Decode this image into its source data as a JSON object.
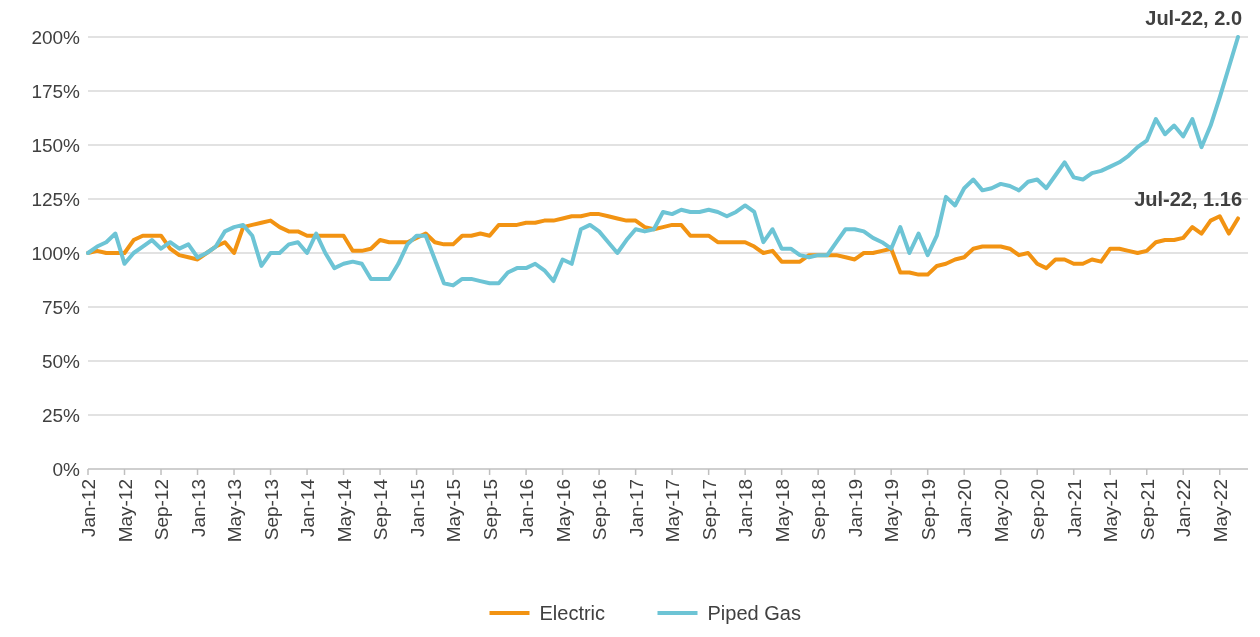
{
  "chart_data": {
    "type": "line",
    "categories": [
      "Jan-12",
      null,
      null,
      null,
      "May-12",
      null,
      null,
      null,
      "Sep-12",
      null,
      null,
      null,
      "Jan-13",
      null,
      null,
      null,
      "May-13",
      null,
      null,
      null,
      "Sep-13",
      null,
      null,
      null,
      "Jan-14",
      null,
      null,
      null,
      "May-14",
      null,
      null,
      null,
      "Sep-14",
      null,
      null,
      null,
      "Jan-15",
      null,
      null,
      null,
      "May-15",
      null,
      null,
      null,
      "Sep-15",
      null,
      null,
      null,
      "Jan-16",
      null,
      null,
      null,
      "May-16",
      null,
      null,
      null,
      "Sep-16",
      null,
      null,
      null,
      "Jan-17",
      null,
      null,
      null,
      "May-17",
      null,
      null,
      null,
      "Sep-17",
      null,
      null,
      null,
      "Jan-18",
      null,
      null,
      null,
      "May-18",
      null,
      null,
      null,
      "Sep-18",
      null,
      null,
      null,
      "Jan-19",
      null,
      null,
      null,
      "May-19",
      null,
      null,
      null,
      "Sep-19",
      null,
      null,
      null,
      "Jan-20",
      null,
      null,
      null,
      "May-20",
      null,
      null,
      null,
      "Sep-20",
      null,
      null,
      null,
      "Jan-21",
      null,
      null,
      null,
      "May-21",
      null,
      null,
      null,
      "Sep-21",
      null,
      null,
      null,
      "Jan-22",
      null,
      null,
      null,
      "May-22",
      null,
      null
    ],
    "series": [
      {
        "name": "Electric",
        "color": "#f29312",
        "values": [
          100,
          101,
          100,
          100,
          100,
          106,
          108,
          108,
          108,
          102,
          99,
          98,
          97,
          100,
          103,
          105,
          100,
          112,
          113,
          114,
          115,
          112,
          110,
          110,
          108,
          108,
          108,
          108,
          108,
          101,
          101,
          102,
          106,
          105,
          105,
          105,
          107,
          109,
          105,
          104,
          104,
          108,
          108,
          109,
          108,
          113,
          113,
          113,
          114,
          114,
          115,
          115,
          116,
          117,
          117,
          118,
          118,
          117,
          116,
          115,
          115,
          112,
          111,
          112,
          113,
          113,
          108,
          108,
          108,
          105,
          105,
          105,
          105,
          103,
          100,
          101,
          96,
          96,
          96,
          99,
          99,
          99,
          99,
          98,
          97,
          100,
          100,
          101,
          102,
          91,
          91,
          90,
          90,
          94,
          95,
          97,
          98,
          102,
          103,
          103,
          103,
          102,
          99,
          100,
          95,
          93,
          97,
          97,
          95,
          95,
          97,
          96,
          102,
          102,
          101,
          100,
          101,
          105,
          106,
          106,
          107,
          112,
          109,
          115,
          117,
          109,
          116
        ]
      },
      {
        "name": "Piped Gas",
        "color": "#6dc4d5",
        "values": [
          100,
          103,
          105,
          109,
          95,
          100,
          103,
          106,
          102,
          105,
          102,
          104,
          98,
          100,
          103,
          110,
          112,
          113,
          108,
          94,
          100,
          100,
          104,
          105,
          100,
          109,
          100,
          93,
          95,
          96,
          95,
          88,
          88,
          88,
          95,
          104,
          108,
          108,
          97,
          86,
          85,
          88,
          88,
          87,
          86,
          86,
          91,
          93,
          93,
          95,
          92,
          87,
          97,
          95,
          111,
          113,
          110,
          105,
          100,
          106,
          111,
          110,
          111,
          119,
          118,
          120,
          119,
          119,
          120,
          119,
          117,
          119,
          122,
          119,
          105,
          111,
          102,
          102,
          99,
          98,
          99,
          99,
          105,
          111,
          111,
          110,
          107,
          105,
          102,
          112,
          100,
          109,
          99,
          108,
          126,
          122,
          130,
          134,
          129,
          130,
          132,
          131,
          129,
          133,
          134,
          130,
          136,
          142,
          135,
          134,
          137,
          138,
          140,
          142,
          145,
          149,
          152,
          162,
          155,
          159,
          154,
          162,
          149,
          159,
          172,
          186,
          200
        ]
      }
    ],
    "ylim": [
      0,
      200
    ],
    "yticks": [
      {
        "value": 0,
        "label": "0%"
      },
      {
        "value": 25,
        "label": "25%"
      },
      {
        "value": 50,
        "label": "50%"
      },
      {
        "value": 75,
        "label": "75%"
      },
      {
        "value": 100,
        "label": "100%"
      },
      {
        "value": 125,
        "label": "125%"
      },
      {
        "value": 150,
        "label": "150%"
      },
      {
        "value": 175,
        "label": "175%"
      },
      {
        "value": 200,
        "label": "200%"
      }
    ],
    "grid": "y",
    "legend": "bottom",
    "annotations": [
      "Jul-22, 2.0",
      "Jul-22, 1.16"
    ]
  }
}
